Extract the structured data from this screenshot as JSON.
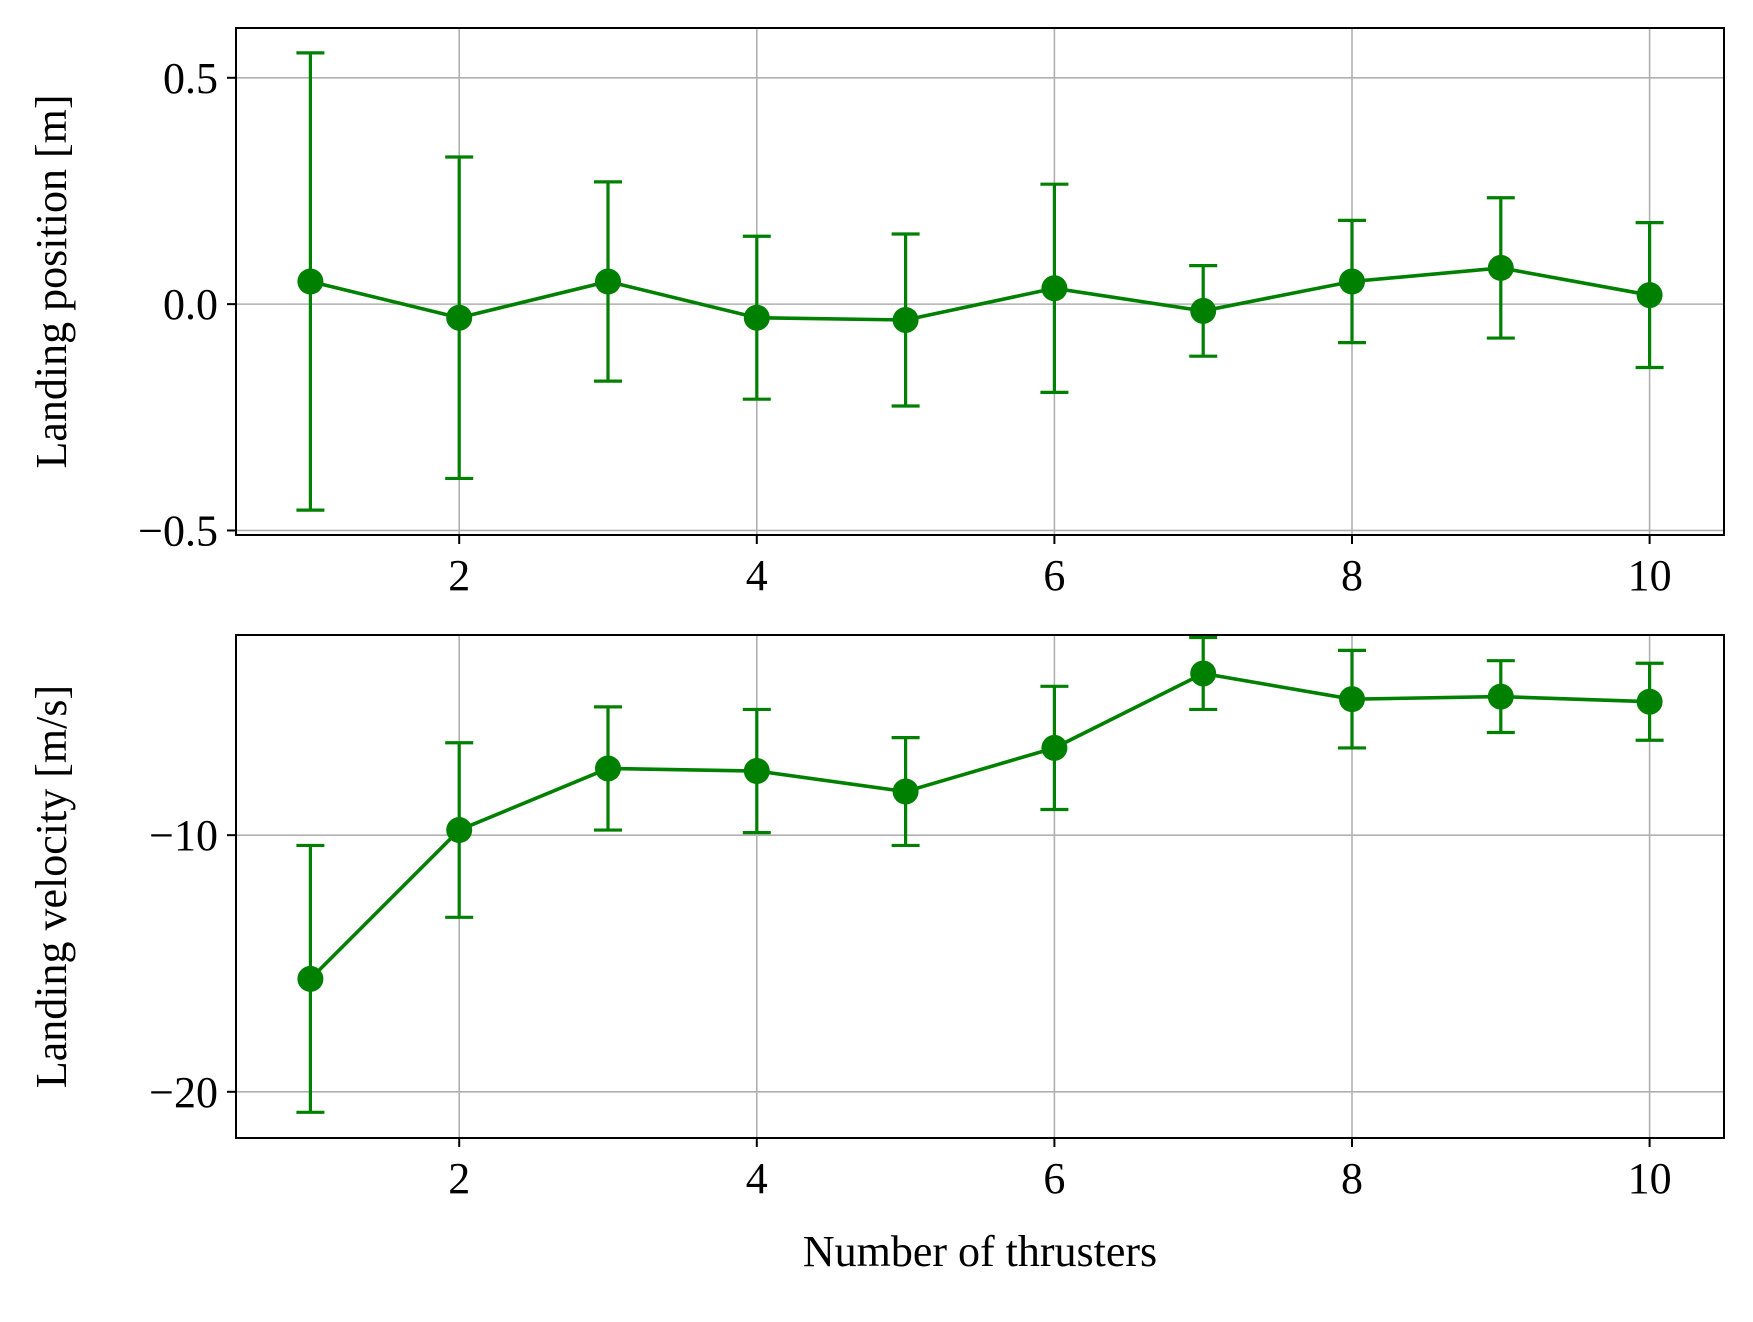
{
  "chart_data": [
    {
      "type": "line",
      "error_bars": true,
      "x": [
        1,
        2,
        3,
        4,
        5,
        6,
        7,
        8,
        9,
        10
      ],
      "series": [
        {
          "values": [
            0.05,
            -0.03,
            0.05,
            -0.03,
            -0.035,
            0.035,
            -0.015,
            0.05,
            0.08,
            0.02
          ],
          "err": [
            0.505,
            0.355,
            0.22,
            0.18,
            0.19,
            0.23,
            0.1,
            0.135,
            0.155,
            0.16
          ],
          "color": "#008000"
        }
      ],
      "xlabel": "",
      "ylabel": "Landing position [m]",
      "xlim": [
        0.5,
        10.5
      ],
      "ylim": [
        -0.51,
        0.61
      ],
      "xticks": [
        2,
        4,
        6,
        8,
        10
      ],
      "xtick_labels": [
        "2",
        "4",
        "6",
        "8",
        "10"
      ],
      "yticks": [
        -0.5,
        0.0,
        0.5
      ],
      "ytick_labels": [
        "−0.5",
        "0.0",
        "0.5"
      ],
      "grid": true
    },
    {
      "type": "line",
      "error_bars": true,
      "x": [
        1,
        2,
        3,
        4,
        5,
        6,
        7,
        8,
        9,
        10
      ],
      "series": [
        {
          "values": [
            -15.6,
            -9.8,
            -7.4,
            -7.5,
            -8.3,
            -6.6,
            -3.7,
            -4.7,
            -4.6,
            -4.8
          ],
          "err": [
            5.2,
            3.4,
            2.4,
            2.4,
            2.1,
            2.4,
            1.4,
            1.9,
            1.4,
            1.5
          ],
          "color": "#008000"
        }
      ],
      "xlabel": "Number of thrusters",
      "ylabel": "Landing velocity [m/s]",
      "xlim": [
        0.5,
        10.5
      ],
      "ylim": [
        -21.8,
        -2.2
      ],
      "xticks": [
        2,
        4,
        6,
        8,
        10
      ],
      "xtick_labels": [
        "2",
        "4",
        "6",
        "8",
        "10"
      ],
      "yticks": [
        -20,
        -10
      ],
      "ytick_labels": [
        "−20",
        "−10"
      ],
      "grid": true
    }
  ]
}
